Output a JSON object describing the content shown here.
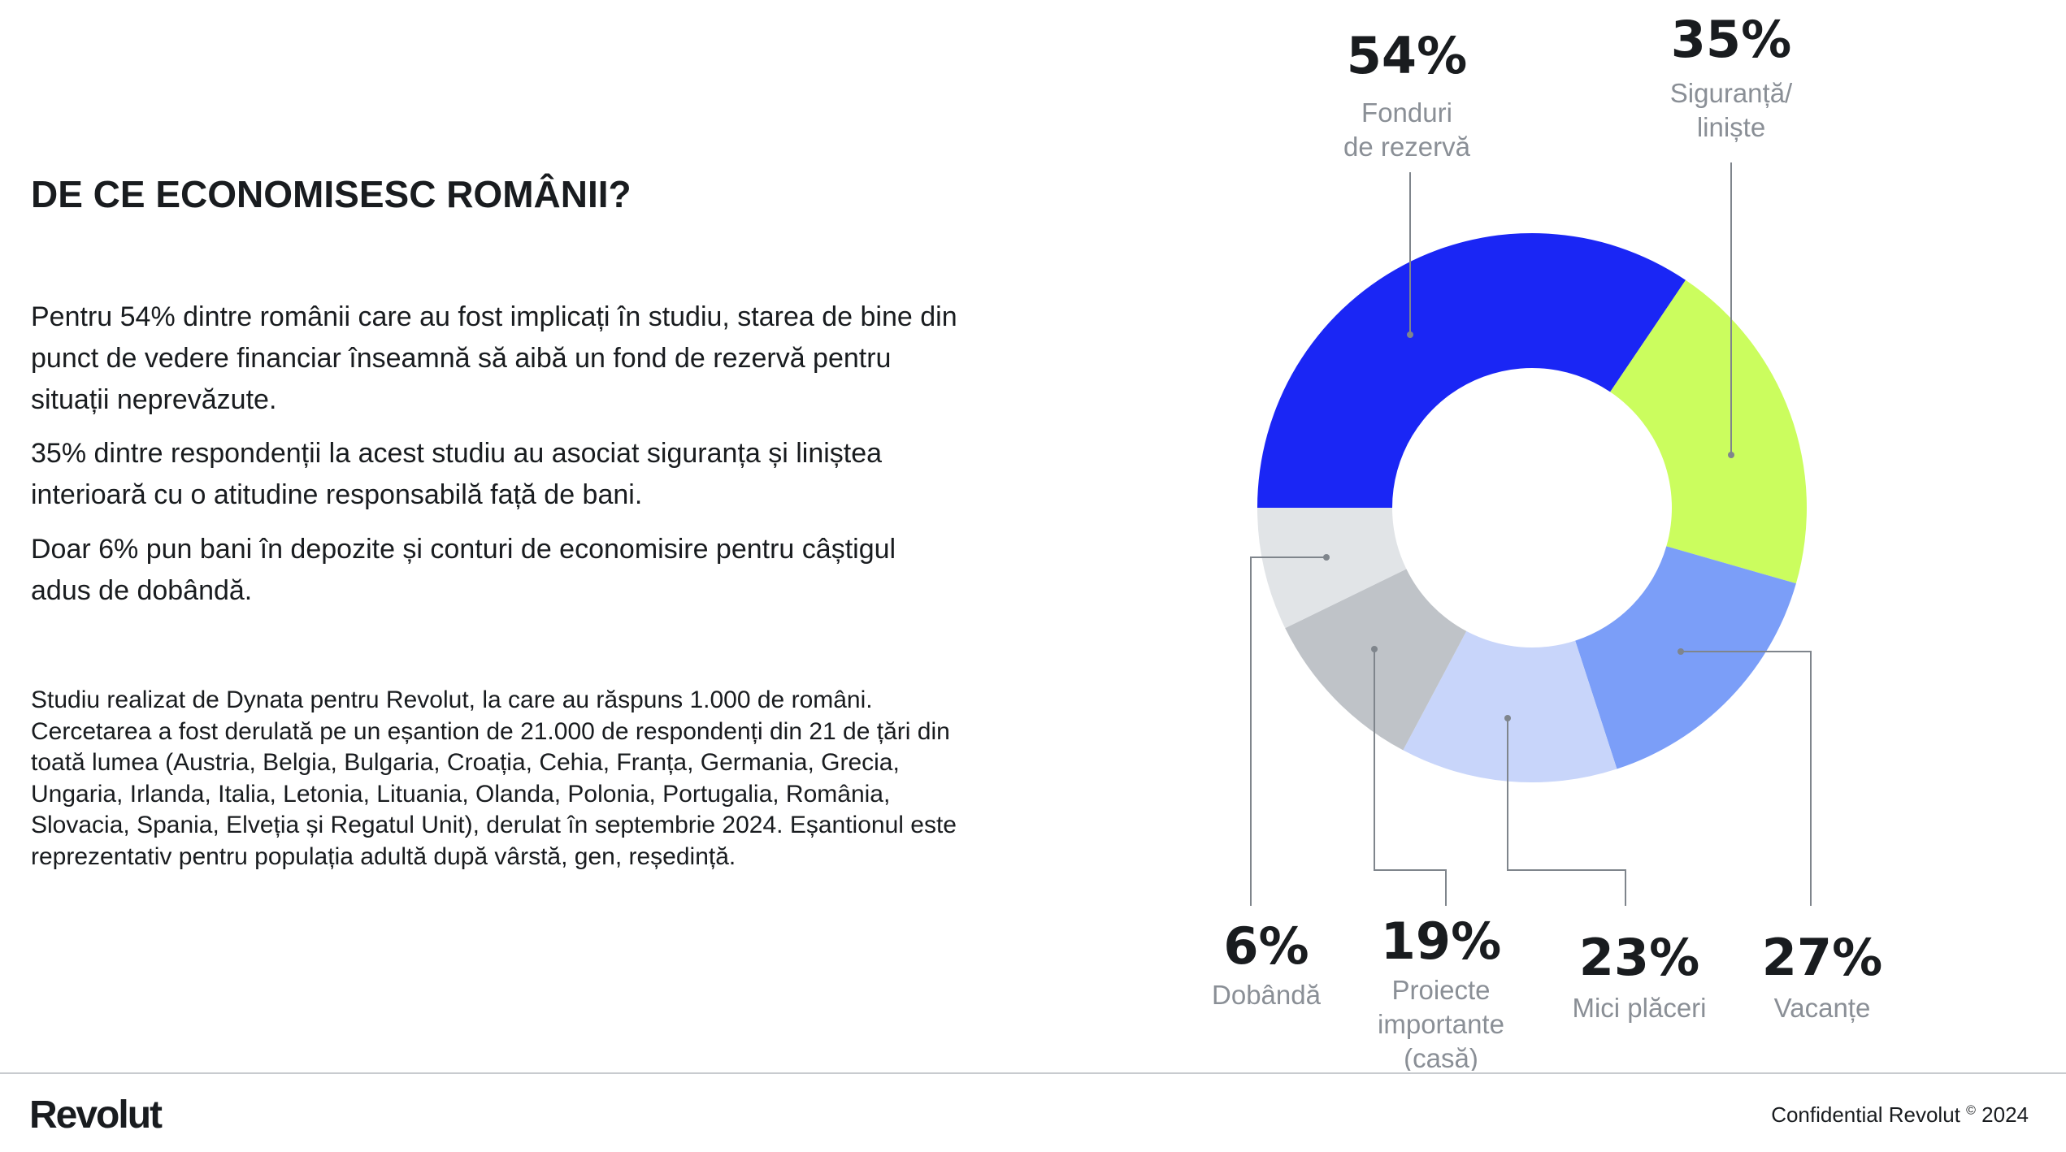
{
  "title": "DE CE ECONOMISESC ROMÂNII?",
  "paragraphs": [
    "Pentru 54% dintre românii care au fost implicați în studiu, starea de bine din punct de vedere financiar înseamnă să aibă un fond de rezervă pentru situații neprevăzute.",
    "35% dintre respondenții la acest studiu au asociat siguranța și liniștea interioară cu o atitudine responsabilă față de bani.",
    "Doar 6% pun bani în depozite și conturi de economisire pentru câștigul adus de dobândă."
  ],
  "note": "Studiu realizat de Dynata pentru Revolut, la care au răspuns 1.000 de români. Cercetarea a fost derulată pe un eșantion de 21.000 de respondenți din 21 de țări din toată lumea (Austria, Belgia, Bulgaria, Croația, Cehia, Franța, Germania, Grecia, Ungaria, Irlanda, Italia, Letonia, Lituania, Olanda, Polonia, Portugalia, România, Slovacia, Spania, Elveția și Regatul Unit), derulat în septembrie 2024. Eșantionul este reprezentativ pentru populația adultă după vârstă, gen, reședință.",
  "chart_data": {
    "type": "pie",
    "variant": "donut",
    "series": [
      {
        "value": 54,
        "value_label": "54%",
        "label": "Fonduri de rezervă",
        "color": "#1a26f5"
      },
      {
        "value": 35,
        "value_label": "35%",
        "label": "Siguranță/ liniște",
        "color": "#cbfd5e"
      },
      {
        "value": 27,
        "value_label": "27%",
        "label": "Vacanțe",
        "color": "#7b9ef8"
      },
      {
        "value": 23,
        "value_label": "23%",
        "label": "Mici plăceri",
        "color": "#c8d5fa"
      },
      {
        "value": 19,
        "value_label": "19%",
        "label": "Proiecte importante (casă)",
        "color": "#bfc3c8"
      },
      {
        "value": 6,
        "value_label": "6%",
        "label": "Dobândă",
        "color": "#e1e4e7"
      }
    ]
  },
  "footer": {
    "logo": "Revolut",
    "confidential": "Confidential Revolut",
    "copyright": "©",
    "year": "2024"
  }
}
